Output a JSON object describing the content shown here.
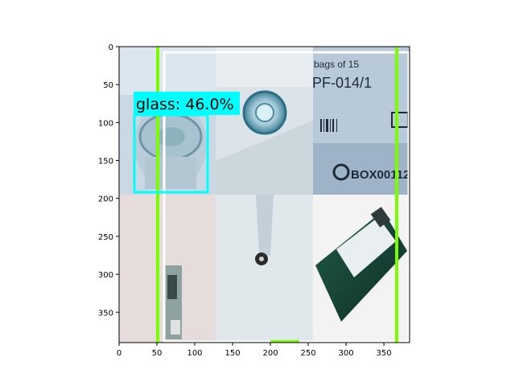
{
  "figure": {
    "detection": {
      "label": "glass",
      "score_text": "46.0%"
    },
    "tile_text": {
      "top_right_line1": "bags of 15",
      "top_right_line2": "PF-014/1",
      "box_code": "BOX00112"
    },
    "colors": {
      "cyan_box": "#00ffff",
      "green_line": "#7cfc00",
      "white_box": "#ffffff"
    }
  },
  "chart_data": {
    "type": "image",
    "xlim": [
      0,
      384
    ],
    "ylim": [
      390,
      0
    ],
    "xticks": [
      0,
      50,
      100,
      150,
      200,
      250,
      300,
      350
    ],
    "yticks": [
      0,
      50,
      100,
      150,
      200,
      250,
      300,
      350
    ],
    "annotations": [
      {
        "kind": "detection-box",
        "label": "glass: 46.0%",
        "x0": 20,
        "y0": 90,
        "x1": 118,
        "y1": 192
      },
      {
        "kind": "outline-box",
        "x0": 60,
        "y0": 7,
        "x1": 384,
        "y1": 390
      },
      {
        "kind": "vertical-line",
        "x": 52
      },
      {
        "kind": "vertical-line",
        "x": 367
      }
    ]
  }
}
